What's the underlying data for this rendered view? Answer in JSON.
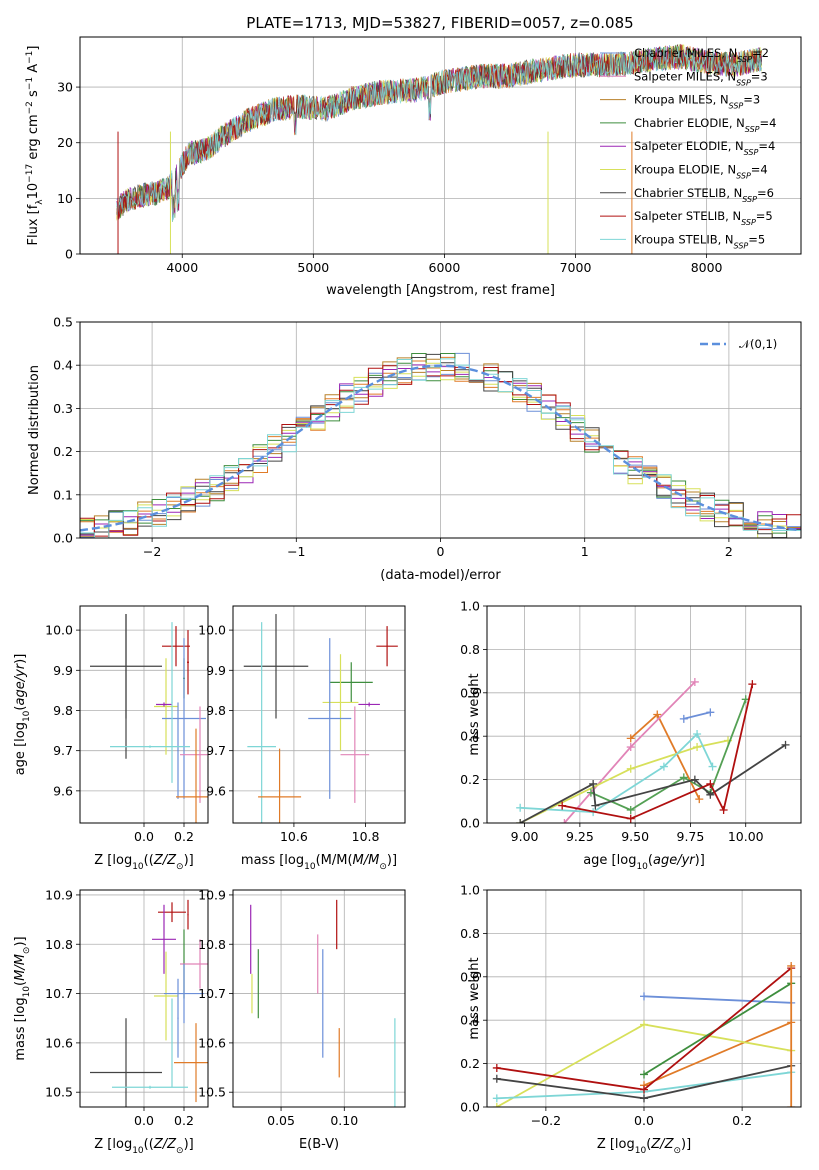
{
  "title": "PLATE=1713, MJD=53827, FIBERID=0057, z=0.085",
  "colors": [
    "#6c8fd8",
    "#e07b28",
    "#b8812a",
    "#3e8e3e",
    "#9b27b5",
    "#d7e05a",
    "#444444",
    "#b01010",
    "#7ed6d6",
    "#e184b7",
    "#54a054"
  ],
  "legend_models": [
    {
      "text": "Chabrier MILES, N",
      "sub": "SSP",
      "val": "=2"
    },
    {
      "text": "Salpeter MILES, N",
      "sub": "SSP",
      "val": "=3"
    },
    {
      "text": "Kroupa MILES, N",
      "sub": "SSP",
      "val": "=3"
    },
    {
      "text": "Chabrier ELODIE, N",
      "sub": "SSP",
      "val": "=4"
    },
    {
      "text": "Salpeter ELODIE, N",
      "sub": "SSP",
      "val": "=4"
    },
    {
      "text": "Kroupa ELODIE, N",
      "sub": "SSP",
      "val": "=4"
    },
    {
      "text": "Chabrier STELIB, N",
      "sub": "SSP",
      "val": "=6"
    },
    {
      "text": "Salpeter STELIB, N",
      "sub": "SSP",
      "val": "=5"
    },
    {
      "text": "Kroupa STELIB, N",
      "sub": "SSP",
      "val": "=5"
    }
  ],
  "legend_colors": [
    "#6c8fd8",
    "#e184b7",
    "#b8812a",
    "#3e8e3e",
    "#9b27b5",
    "#d7e05a",
    "#444444",
    "#b01010",
    "#7ed6d6"
  ],
  "chart_data": [
    {
      "id": "spectrum",
      "type": "line",
      "xlabel": "wavelength [Angstrom, rest frame]",
      "ylabel_main": "Flux [f",
      "ylabel_sub": "λ",
      "ylabel_rest": "10",
      "ylabel_sup": "−17",
      "ylabel_tail": " erg cm",
      "ylabel_sup2": "−2",
      "ylabel_tail2": " s",
      "ylabel_sup3": "−1",
      "ylabel_tail3": " A",
      "ylabel_sup4": "−1",
      "ylabel_close": "]",
      "xlim": [
        3220,
        8720
      ],
      "ylim": [
        0,
        39
      ],
      "xticks": [
        4000,
        5000,
        6000,
        7000,
        8000
      ],
      "yticks": [
        0,
        10,
        20,
        30
      ],
      "continuum": [
        [
          3500,
          8
        ],
        [
          3600,
          10
        ],
        [
          3800,
          11
        ],
        [
          3900,
          12
        ],
        [
          3950,
          14
        ],
        [
          4050,
          18
        ],
        [
          4200,
          19
        ],
        [
          4300,
          21
        ],
        [
          4500,
          24
        ],
        [
          4700,
          26
        ],
        [
          4900,
          26.5
        ],
        [
          5100,
          26
        ],
        [
          5300,
          28
        ],
        [
          5500,
          29
        ],
        [
          5800,
          29.5
        ],
        [
          6000,
          31
        ],
        [
          6300,
          32
        ],
        [
          6500,
          32
        ],
        [
          6700,
          33
        ],
        [
          7000,
          34
        ],
        [
          7300,
          34
        ],
        [
          7600,
          35
        ],
        [
          7800,
          35.5
        ],
        [
          8000,
          34.5
        ],
        [
          8200,
          34
        ],
        [
          8400,
          35
        ]
      ]
    },
    {
      "id": "residuals",
      "type": "histogram",
      "xlabel": "(data-model)/error",
      "ylabel": "Normed distribution",
      "xlim": [
        -2.5,
        2.5
      ],
      "ylim": [
        0,
        0.5
      ],
      "xticks": [
        -2,
        -1,
        0,
        1,
        2
      ],
      "xtick_labels": [
        "−2",
        "−1",
        "0",
        "1",
        "2"
      ],
      "yticks": [
        0,
        0.1,
        0.2,
        0.3,
        0.4,
        0.5
      ],
      "ytick_labels": [
        "0.0",
        "0.1",
        "0.2",
        "0.3",
        "0.4",
        "0.5"
      ],
      "bin_width": 0.1,
      "legend": "𝒩(0,1)"
    },
    {
      "id": "z_age",
      "type": "scatter",
      "xlabel_main": "Z [log",
      "xlabel_sub": "10",
      "xlabel_rest": "(Z/Z",
      "xlabel_sub2": "⊙",
      "xlabel_close": ")]",
      "ylabel_main": "age  [log",
      "ylabel_sub": "10",
      "ylabel_rest": "(age/yr)]",
      "xlim": [
        -0.32,
        0.32
      ],
      "ylim": [
        9.52,
        10.06
      ],
      "xticks": [
        0,
        0.2
      ],
      "xtick_labels": [
        "0.0",
        "0.2"
      ],
      "yticks": [
        9.6,
        9.7,
        9.8,
        9.9,
        10.0
      ],
      "ytick_labels": [
        "9.6",
        "9.7",
        "9.8",
        "9.9",
        "10.0"
      ],
      "points": [
        {
          "c": "#444444",
          "x": -0.09,
          "xerr": 0.18,
          "y": 9.91,
          "yerr": 0.13,
          "xe": "0.18"
        },
        {
          "c": "#444444",
          "x": -0.09,
          "xerr": 0.001,
          "y": 9.86,
          "yerr": 0.18
        },
        {
          "c": "#b01010",
          "x": 0.16,
          "xerr": 0.07,
          "y": 9.96,
          "yerr": 0.05
        },
        {
          "c": "#b01010",
          "x": 0.22,
          "xerr": 0.005,
          "y": 9.92,
          "yerr": 0.08
        },
        {
          "c": "#3e8e3e",
          "x": 0.2,
          "xerr": 0.005,
          "y": 9.88,
          "yerr": 0.05
        },
        {
          "c": "#d7e05a",
          "x": 0.11,
          "xerr": 0.06,
          "y": 9.81,
          "yerr": 0.12
        },
        {
          "c": "#9b27b5",
          "x": 0.1,
          "xerr": 0.04,
          "y": 9.815,
          "yerr": 0.005
        },
        {
          "c": "#6c8fd8",
          "x": 0.2,
          "xerr": 0.11,
          "y": 9.78,
          "yerr": 0.2
        },
        {
          "c": "#6c8fd8",
          "x": 0.17,
          "xerr": 0.003,
          "y": 9.7,
          "yerr": 0.12
        },
        {
          "c": "#7ed6d6",
          "x": 0.14,
          "xerr": 0.003,
          "y": 9.82,
          "yerr": 0.2
        },
        {
          "c": "#7ed6d6",
          "x": 0.03,
          "xerr": 0.2,
          "y": 9.71,
          "yerr": 0.003
        },
        {
          "c": "#e184b7",
          "x": 0.28,
          "xerr": 0.1,
          "y": 9.69,
          "yerr": 0.12
        },
        {
          "c": "#e07b28",
          "x": 0.26,
          "xerr": 0.1,
          "y": 9.585,
          "yerr": 0.17
        }
      ]
    },
    {
      "id": "mass_age",
      "type": "scatter",
      "xlabel_main": "mass [log",
      "xlabel_sub": "10",
      "xlabel_rest": "(M/M",
      "xlabel_sub2": "⊙",
      "xlabel_close": ")]",
      "xlim": [
        10.43,
        10.91
      ],
      "ylim": [
        9.52,
        10.06
      ],
      "xticks": [
        10.6,
        10.8
      ],
      "xtick_labels": [
        "10.6",
        "10.8"
      ],
      "yticks": [
        9.6,
        9.7,
        9.8,
        9.9,
        10.0
      ],
      "ytick_labels": [
        "9.6",
        "9.7",
        "9.8",
        "9.9",
        "10.0"
      ],
      "points": [
        {
          "c": "#444444",
          "x": 10.55,
          "xerr": 0.09,
          "y": 9.91,
          "yerr": 0.13
        },
        {
          "c": "#b01010",
          "x": 10.86,
          "xerr": 0.03,
          "y": 9.96,
          "yerr": 0.05
        },
        {
          "c": "#3e8e3e",
          "x": 10.76,
          "xerr": 0.06,
          "y": 9.87,
          "yerr": 0.05
        },
        {
          "c": "#d7e05a",
          "x": 10.73,
          "xerr": 0.05,
          "y": 9.82,
          "yerr": 0.12
        },
        {
          "c": "#9b27b5",
          "x": 10.81,
          "xerr": 0.03,
          "y": 9.815,
          "yerr": 0.005
        },
        {
          "c": "#6c8fd8",
          "x": 10.7,
          "xerr": 0.06,
          "y": 9.78,
          "yerr": 0.2
        },
        {
          "c": "#7ed6d6",
          "x": 10.51,
          "xerr": 0.04,
          "y": 9.71,
          "yerr": 0.31
        },
        {
          "c": "#e184b7",
          "x": 10.77,
          "xerr": 0.04,
          "y": 9.69,
          "yerr": 0.12
        },
        {
          "c": "#e07b28",
          "x": 10.56,
          "xerr": 0.06,
          "y": 9.585,
          "yerr": 0.12
        }
      ]
    },
    {
      "id": "age_weight",
      "type": "line",
      "xlabel_main": "age  [log",
      "xlabel_sub": "10",
      "xlabel_rest": "(age/yr)]",
      "ylabel": "mass weight",
      "xlim": [
        8.83,
        10.25
      ],
      "ylim": [
        0,
        1
      ],
      "xticks": [
        9.0,
        9.25,
        9.5,
        9.75,
        10.0
      ],
      "xtick_labels": [
        "9.00",
        "9.25",
        "9.50",
        "9.75",
        "10.00"
      ],
      "yticks": [
        0,
        0.2,
        0.4,
        0.6,
        0.8,
        1.0
      ],
      "ytick_labels": [
        "0.0",
        "0.2",
        "0.4",
        "0.6",
        "0.8",
        "1.0"
      ],
      "series": [
        {
          "c": "#6c8fd8",
          "pts": [
            [
              9.72,
              0.48
            ],
            [
              9.84,
              0.51
            ]
          ]
        },
        {
          "c": "#e07b28",
          "pts": [
            [
              9.48,
              0.39
            ],
            [
              9.6,
              0.5
            ],
            [
              9.79,
              0.11
            ]
          ]
        },
        {
          "c": "#e184b7",
          "pts": [
            [
              9.18,
              0.0
            ],
            [
              9.48,
              0.35
            ],
            [
              9.77,
              0.65
            ]
          ]
        },
        {
          "c": "#d7e05a",
          "pts": [
            [
              8.98,
              0.0
            ],
            [
              9.48,
              0.25
            ],
            [
              9.78,
              0.35
            ],
            [
              9.92,
              0.38
            ]
          ]
        },
        {
          "c": "#7ed6d6",
          "pts": [
            [
              8.98,
              0.07
            ],
            [
              9.31,
              0.05
            ],
            [
              9.63,
              0.26
            ],
            [
              9.78,
              0.41
            ],
            [
              9.85,
              0.26
            ]
          ]
        },
        {
          "c": "#54a054",
          "pts": [
            [
              9.3,
              0.14
            ],
            [
              9.48,
              0.06
            ],
            [
              9.72,
              0.21
            ],
            [
              9.84,
              0.14
            ],
            [
              10.0,
              0.57
            ]
          ]
        },
        {
          "c": "#444444",
          "pts": [
            [
              8.98,
              0.0
            ],
            [
              9.31,
              0.18
            ],
            [
              9.32,
              0.08
            ],
            [
              9.77,
              0.2
            ],
            [
              9.84,
              0.13
            ],
            [
              10.18,
              0.36
            ]
          ]
        },
        {
          "c": "#b01010",
          "pts": [
            [
              9.17,
              0.08
            ],
            [
              9.48,
              0.02
            ],
            [
              9.84,
              0.18
            ],
            [
              9.9,
              0.06
            ],
            [
              10.03,
              0.64
            ]
          ]
        }
      ]
    },
    {
      "id": "z_mass",
      "type": "scatter",
      "xlabel_main": "Z [log",
      "xlabel_sub": "10",
      "xlabel_rest": "(Z/Z",
      "xlabel_sub2": "⊙",
      "xlabel_close": ")]",
      "ylabel_main": "mass [log",
      "ylabel_sub": "10",
      "ylabel_rest": "(M/M",
      "ylabel_sub2": "⊙",
      "ylabel_close": ")]",
      "xlim": [
        -0.32,
        0.32
      ],
      "ylim": [
        10.47,
        10.91
      ],
      "xticks": [
        0,
        0.2
      ],
      "xtick_labels": [
        "0.0",
        "0.2"
      ],
      "yticks": [
        10.5,
        10.6,
        10.7,
        10.8,
        10.9
      ],
      "ytick_labels": [
        "10.5",
        "10.6",
        "10.7",
        "10.8",
        "10.9"
      ],
      "points": [
        {
          "c": "#444444",
          "x": -0.09,
          "xerr": 0.18,
          "y": 10.54,
          "yerr": 0.11
        },
        {
          "c": "#7ed6d6",
          "x": 0.03,
          "xerr": 0.19,
          "y": 10.51,
          "yerr": 0.003
        },
        {
          "c": "#7ed6d6",
          "x": 0.14,
          "xerr": 0.003,
          "y": 10.6,
          "yerr": 0.09
        },
        {
          "c": "#b01010",
          "x": 0.14,
          "xerr": 0.07,
          "y": 10.865,
          "yerr": 0.02
        },
        {
          "c": "#b01010",
          "x": 0.22,
          "xerr": 0.003,
          "y": 10.86,
          "yerr": 0.03
        },
        {
          "c": "#9b27b5",
          "x": 0.1,
          "xerr": 0.06,
          "y": 10.81,
          "yerr": 0.07
        },
        {
          "c": "#3e8e3e",
          "x": 0.2,
          "xerr": 0.005,
          "y": 10.76,
          "yerr": 0.07
        },
        {
          "c": "#e184b7",
          "x": 0.28,
          "xerr": 0.1,
          "y": 10.76,
          "yerr": 0.05
        },
        {
          "c": "#d7e05a",
          "x": 0.11,
          "xerr": 0.06,
          "y": 10.695,
          "yerr": 0.09
        },
        {
          "c": "#6c8fd8",
          "x": 0.2,
          "xerr": 0.1,
          "y": 10.7,
          "yerr": 0.06
        },
        {
          "c": "#6c8fd8",
          "x": 0.17,
          "xerr": 0.003,
          "y": 10.65,
          "yerr": 0.08
        },
        {
          "c": "#e07b28",
          "x": 0.26,
          "xerr": 0.11,
          "y": 10.56,
          "yerr": 0.08
        }
      ]
    },
    {
      "id": "ebv_mass",
      "type": "scatter",
      "xlabel": "E(B-V)",
      "xlim": [
        0.012,
        0.148
      ],
      "ylim": [
        10.47,
        10.91
      ],
      "xticks": [
        0.05,
        0.1
      ],
      "xtick_labels": [
        "0.05",
        "0.10"
      ],
      "yticks": [
        10.5,
        10.6,
        10.7,
        10.8,
        10.9
      ],
      "ytick_labels": [
        "10.5",
        "10.6",
        "10.7",
        "10.8",
        "10.9"
      ],
      "points": [
        {
          "c": "#9b27b5",
          "x": 0.026,
          "y": 10.81,
          "yerr": 0.07
        },
        {
          "c": "#d7e05a",
          "x": 0.027,
          "y": 10.7,
          "yerr": 0.04
        },
        {
          "c": "#3e8e3e",
          "x": 0.032,
          "y": 10.72,
          "yerr": 0.07
        },
        {
          "c": "#e184b7",
          "x": 0.079,
          "y": 10.76,
          "yerr": 0.06
        },
        {
          "c": "#6c8fd8",
          "x": 0.083,
          "y": 10.68,
          "yerr": 0.11
        },
        {
          "c": "#b01010",
          "x": 0.094,
          "y": 10.84,
          "yerr": 0.05
        },
        {
          "c": "#e07b28",
          "x": 0.096,
          "y": 10.58,
          "yerr": 0.05
        },
        {
          "c": "#7ed6d6",
          "x": 0.14,
          "y": 10.56,
          "yerr": 0.09
        }
      ]
    },
    {
      "id": "z_weight",
      "type": "line",
      "xlabel_main": "Z [log",
      "xlabel_sub": "10",
      "xlabel_rest": "(Z/Z",
      "xlabel_sub2": "⊙",
      "xlabel_close": ")]",
      "ylabel": "mass weight",
      "xlim": [
        -0.32,
        0.32
      ],
      "ylim": [
        0,
        1
      ],
      "xticks": [
        -0.2,
        0,
        0.2
      ],
      "xtick_labels": [
        "−0.2",
        "0.0",
        "0.2"
      ],
      "yticks": [
        0,
        0.2,
        0.4,
        0.6,
        0.8,
        1.0
      ],
      "ytick_labels": [
        "0.0",
        "0.2",
        "0.4",
        "0.6",
        "0.8",
        "1.0"
      ],
      "series": [
        {
          "c": "#6c8fd8",
          "pts": [
            [
              0.0,
              0.51
            ],
            [
              0.3,
              0.48
            ]
          ]
        },
        {
          "c": "#e07b28",
          "pts": [
            [
              0.0,
              0.1
            ],
            [
              0.3,
              0.39
            ]
          ]
        },
        {
          "c": "#d7e05a",
          "pts": [
            [
              -0.3,
              0.0
            ],
            [
              0.0,
              0.38
            ],
            [
              0.3,
              0.26
            ]
          ]
        },
        {
          "c": "#7ed6d6",
          "pts": [
            [
              -0.3,
              0.04
            ],
            [
              0.0,
              0.07
            ],
            [
              0.3,
              0.16
            ]
          ]
        },
        {
          "c": "#3e8e3e",
          "pts": [
            [
              0.0,
              0.15
            ],
            [
              0.3,
              0.57
            ]
          ]
        },
        {
          "c": "#444444",
          "pts": [
            [
              -0.3,
              0.13
            ],
            [
              0.0,
              0.04
            ],
            [
              0.3,
              0.19
            ]
          ]
        },
        {
          "c": "#b01010",
          "pts": [
            [
              -0.3,
              0.18
            ],
            [
              0.0,
              0.08
            ],
            [
              0.3,
              0.64
            ]
          ]
        },
        {
          "c": "#e07b28",
          "pts": [
            [
              0.3,
              0.0
            ],
            [
              0.3,
              0.65
            ]
          ]
        }
      ]
    }
  ]
}
